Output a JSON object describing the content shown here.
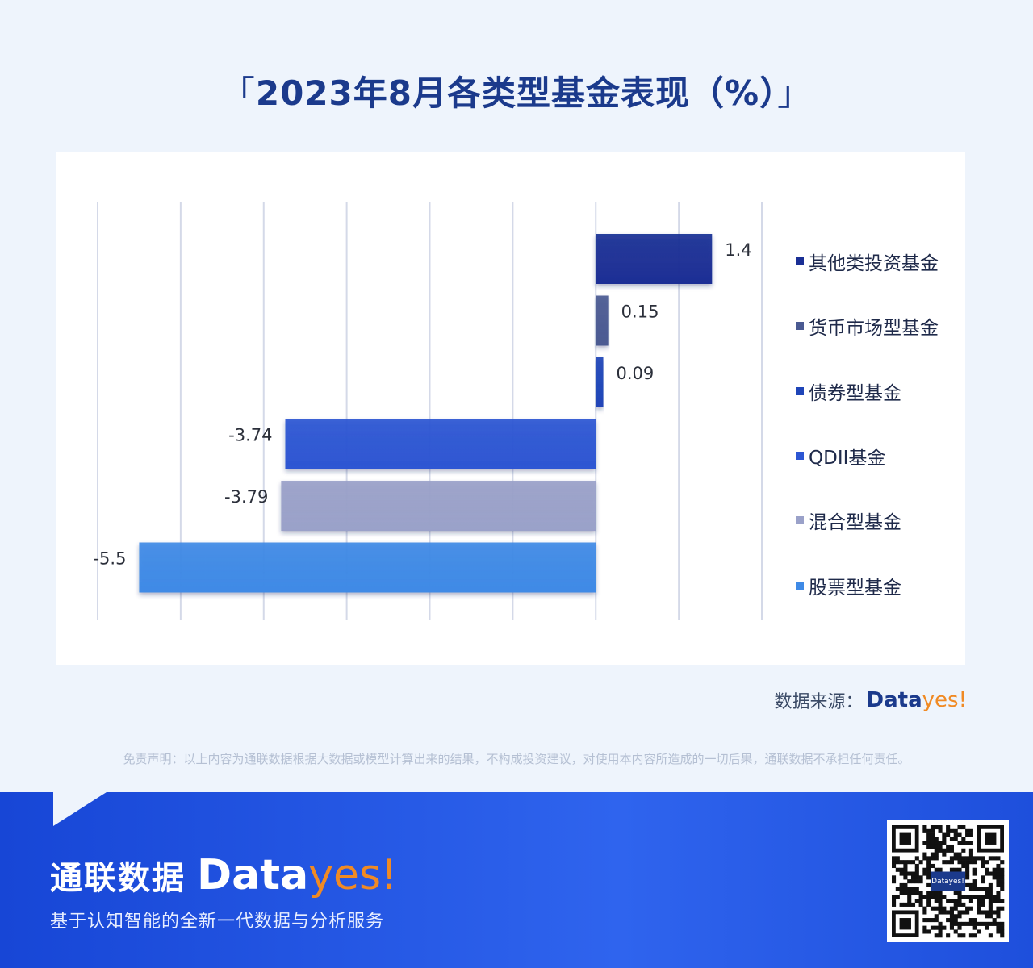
{
  "header": {
    "title": "2023年8月各类型基金表现（%）",
    "bracket_left": "「",
    "bracket_right": "」"
  },
  "chart_data": {
    "type": "bar",
    "orientation": "horizontal",
    "title": "2023年8月各类型基金表现（%）",
    "categories": [
      "其他类投资基金",
      "货币市场型基金",
      "债券型基金",
      "QDII基金",
      "混合型基金",
      "股票型基金"
    ],
    "values": [
      1.4,
      0.15,
      0.09,
      -3.74,
      -3.79,
      -5.5
    ],
    "value_labels": [
      "1.4",
      "0.15",
      "0.09",
      "-3.74",
      "-3.79",
      "-5.5"
    ],
    "colors": [
      "#1a2f95",
      "#4a5a92",
      "#1f45b8",
      "#2d56d3",
      "#9aa1c9",
      "#3f8ae6"
    ],
    "xlim": [
      -6,
      2
    ],
    "grid": true,
    "legend_position": "right"
  },
  "legend": {
    "items": [
      {
        "label": "其他类投资基金",
        "color": "#1a2f95"
      },
      {
        "label": "货币市场型基金",
        "color": "#4a5a92"
      },
      {
        "label": "债券型基金",
        "color": "#1f45b8"
      },
      {
        "label": "QDII基金",
        "color": "#2d56d3"
      },
      {
        "label": "混合型基金",
        "color": "#9aa1c9"
      },
      {
        "label": "股票型基金",
        "color": "#3f8ae6"
      }
    ]
  },
  "source": {
    "label": "数据来源：",
    "logo_data": "Data",
    "logo_yes": "yes!"
  },
  "disclaimer": "免责声明：以上内容为通联数据根据大数据或模型计算出来的结果，不构成投资建议，对使用本内容所造成的一切后果，通联数据不承担任何责任。",
  "footer": {
    "brand_cn": "通联数据",
    "brand_data": "Data",
    "brand_yes": "yes!",
    "tagline": "基于认知智能的全新一代数据与分析服务",
    "qr_center_text": "Datayes!"
  }
}
